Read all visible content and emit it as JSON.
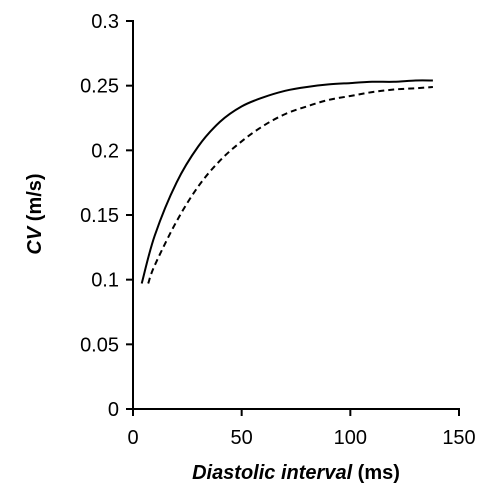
{
  "chart_data": {
    "type": "line",
    "title": "",
    "xlabel": {
      "italic": "Diastolic interval",
      "rest": " (ms)"
    },
    "ylabel": {
      "italic": "CV",
      "rest": " (m/s)"
    },
    "xlim": [
      0,
      150
    ],
    "ylim": [
      0,
      0.3
    ],
    "x_ticks": [
      "0",
      "50",
      "100",
      "150"
    ],
    "y_ticks": [
      "0",
      "0.05",
      "0.1",
      "0.15",
      "0.2",
      "0.25",
      "0.3"
    ],
    "grid": false,
    "legend": "none",
    "series": [
      {
        "style": "solid",
        "color": "#000000",
        "x": [
          4,
          10,
          20,
          30,
          40,
          50,
          60,
          70,
          80,
          90,
          100,
          110,
          120,
          130,
          138
        ],
        "y": [
          0.097,
          0.134,
          0.175,
          0.203,
          0.222,
          0.234,
          0.241,
          0.246,
          0.249,
          0.251,
          0.252,
          0.253,
          0.253,
          0.254,
          0.254
        ]
      },
      {
        "style": "dashed",
        "color": "#000000",
        "x": [
          7,
          10,
          20,
          30,
          40,
          50,
          60,
          70,
          80,
          90,
          100,
          110,
          120,
          130,
          138
        ],
        "y": [
          0.097,
          0.111,
          0.145,
          0.172,
          0.192,
          0.207,
          0.219,
          0.228,
          0.234,
          0.239,
          0.242,
          0.245,
          0.247,
          0.248,
          0.249
        ]
      }
    ]
  }
}
